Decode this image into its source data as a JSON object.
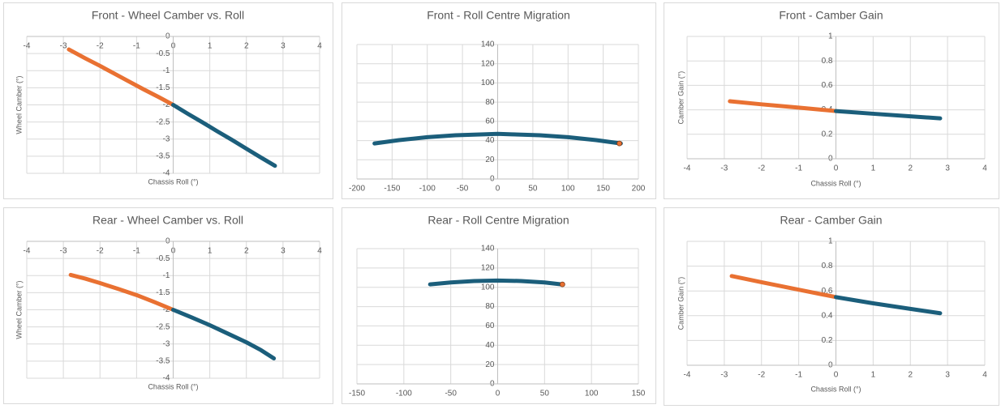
{
  "chart_data": [
    {
      "type": "line",
      "title": "Front - Wheel Camber vs. Roll",
      "xlabel": "Chassis Roll (°)",
      "ylabel": "Wheel Camber (°)",
      "xlim": [
        -4,
        4
      ],
      "ylim": [
        -4,
        0
      ],
      "xticks": [
        -4,
        -3,
        -2,
        -1,
        0,
        1,
        2,
        3,
        4
      ],
      "yticks": [
        0,
        -0.5,
        -1,
        -1.5,
        -2,
        -2.5,
        -3,
        -3.5,
        -4
      ],
      "grid": true,
      "series": [
        {
          "color": "#e97132",
          "x": [
            -2.85,
            -2.4,
            -2,
            -1.6,
            -1.2,
            -0.8,
            -0.4,
            0
          ],
          "values": [
            -0.38,
            -0.64,
            -0.86,
            -1.09,
            -1.32,
            -1.55,
            -1.77,
            -2.0
          ]
        },
        {
          "color": "#1b5e7b",
          "x": [
            0,
            0.4,
            0.8,
            1.2,
            1.6,
            2,
            2.4,
            2.78
          ],
          "values": [
            -2.0,
            -2.26,
            -2.51,
            -2.77,
            -3.02,
            -3.28,
            -3.54,
            -3.78
          ]
        }
      ]
    },
    {
      "type": "line",
      "title": "Front - Roll Centre Migration",
      "xlim": [
        -200,
        200
      ],
      "ylim": [
        0,
        140
      ],
      "xticks": [
        -200,
        -150,
        -100,
        -50,
        0,
        50,
        100,
        150,
        200
      ],
      "yticks": [
        0,
        20,
        40,
        60,
        80,
        100,
        120,
        140
      ],
      "grid": true,
      "series": [
        {
          "color": "#1b5e7b",
          "x": [
            -175,
            -140,
            -100,
            -60,
            -20,
            0,
            20,
            60,
            100,
            140,
            175
          ],
          "values": [
            37,
            40.5,
            43.5,
            45.5,
            46.5,
            47,
            46.5,
            45.5,
            43.5,
            40.5,
            37
          ]
        },
        {
          "color": "#e97132",
          "x": [
            173
          ],
          "values": [
            37
          ]
        }
      ]
    },
    {
      "type": "line",
      "title": "Front - Camber Gain",
      "xlabel": "Chassis Roll (°)",
      "ylabel": "Camber Gain (°)",
      "xlim": [
        -4,
        4
      ],
      "ylim": [
        0,
        1
      ],
      "xticks": [
        -4,
        -3,
        -2,
        -1,
        0,
        1,
        2,
        3,
        4
      ],
      "yticks": [
        0,
        0.2,
        0.4,
        0.6,
        0.8,
        1
      ],
      "grid": true,
      "series": [
        {
          "color": "#e97132",
          "x": [
            -2.85,
            -2,
            -1,
            0
          ],
          "values": [
            0.47,
            0.445,
            0.418,
            0.39
          ]
        },
        {
          "color": "#1b5e7b",
          "x": [
            0,
            1,
            2,
            2.8
          ],
          "values": [
            0.39,
            0.368,
            0.347,
            0.33
          ]
        }
      ]
    },
    {
      "type": "line",
      "title": "Rear - Wheel Camber vs. Roll",
      "xlabel": "Chassis Roll (°)",
      "ylabel": "Wheel Camber (°)",
      "xlim": [
        -4,
        4
      ],
      "ylim": [
        -4,
        0
      ],
      "xticks": [
        -4,
        -3,
        -2,
        -1,
        0,
        1,
        2,
        3,
        4
      ],
      "yticks": [
        0,
        -0.5,
        -1,
        -1.5,
        -2,
        -2.5,
        -3,
        -3.5,
        -4
      ],
      "grid": true,
      "series": [
        {
          "color": "#e97132",
          "x": [
            -2.8,
            -2.4,
            -2,
            -1.5,
            -1,
            -0.5,
            0
          ],
          "values": [
            -0.98,
            -1.09,
            -1.22,
            -1.39,
            -1.57,
            -1.78,
            -2.0
          ]
        },
        {
          "color": "#1b5e7b",
          "x": [
            0,
            0.5,
            1,
            1.5,
            2,
            2.4,
            2.75
          ],
          "values": [
            -2.0,
            -2.22,
            -2.45,
            -2.7,
            -2.95,
            -3.18,
            -3.42
          ]
        }
      ]
    },
    {
      "type": "line",
      "title": "Rear - Roll Centre Migration",
      "xlim": [
        -150,
        150
      ],
      "ylim": [
        0,
        140
      ],
      "xticks": [
        -150,
        -100,
        -50,
        0,
        50,
        100,
        150
      ],
      "yticks": [
        0,
        20,
        40,
        60,
        80,
        100,
        120,
        140
      ],
      "grid": true,
      "series": [
        {
          "color": "#1b5e7b",
          "x": [
            -72,
            -50,
            -25,
            0,
            25,
            50,
            68
          ],
          "values": [
            103,
            105,
            106.5,
            107,
            106.5,
            105,
            103
          ]
        },
        {
          "color": "#e97132",
          "x": [
            69
          ],
          "values": [
            103
          ]
        }
      ]
    },
    {
      "type": "line",
      "title": "Rear - Camber Gain",
      "xlabel": "Chassis Roll (°)",
      "ylabel": "Camber Gain (°)",
      "xlim": [
        -4,
        4
      ],
      "ylim": [
        0,
        1
      ],
      "xticks": [
        -4,
        -3,
        -2,
        -1,
        0,
        1,
        2,
        3,
        4
      ],
      "yticks": [
        0,
        0.2,
        0.4,
        0.6,
        0.8,
        1
      ],
      "grid": true,
      "series": [
        {
          "color": "#e97132",
          "x": [
            -2.8,
            -2,
            -1,
            0
          ],
          "values": [
            0.72,
            0.67,
            0.61,
            0.55
          ]
        },
        {
          "color": "#1b5e7b",
          "x": [
            0,
            1,
            2,
            2.8
          ],
          "values": [
            0.55,
            0.5,
            0.455,
            0.42
          ]
        }
      ]
    }
  ]
}
